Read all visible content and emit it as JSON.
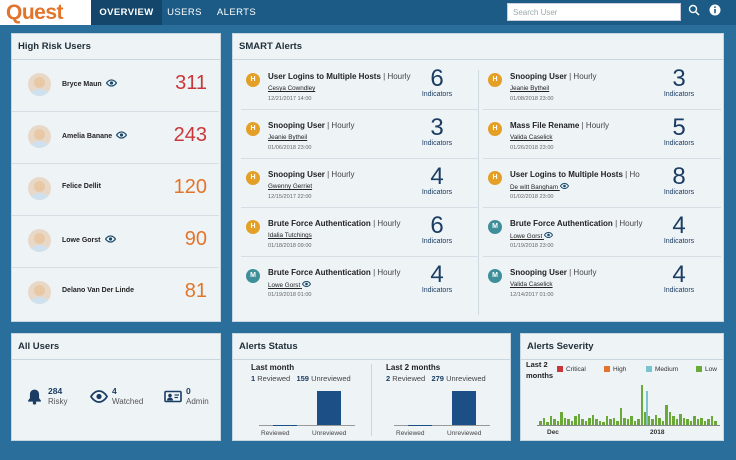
{
  "brand": "Quest",
  "tabs": [
    "OVERVIEW",
    "USERS",
    "ALERTS"
  ],
  "search": {
    "placeholder": "Search User"
  },
  "high_risk": {
    "title": "High Risk Users",
    "users": [
      {
        "name": "Bryce Maun",
        "score": "311",
        "color": "#c9373b",
        "eye": true
      },
      {
        "name": "Amelia Banane",
        "score": "243",
        "color": "#c9373b",
        "eye": true
      },
      {
        "name": "Felice Dellit",
        "score": "120",
        "color": "#e2752b",
        "eye": false
      },
      {
        "name": "Lowe Gorst",
        "score": "90",
        "color": "#e2752b",
        "eye": true
      },
      {
        "name": "Delano Van Der Linde",
        "score": "81",
        "color": "#e2752b",
        "eye": false
      }
    ]
  },
  "smart": {
    "title": "SMART Alerts",
    "indicators_label": "Indicators",
    "alerts": [
      {
        "badge": "H",
        "badge_color": "#e49f27",
        "title": "User Logins to Multiple Hosts",
        "freq": "| Hourly",
        "user": "Cesya Cowndley",
        "eye": false,
        "date": "12/21/2017 14:00",
        "count": "6"
      },
      {
        "badge": "H",
        "badge_color": "#e49f27",
        "title": "Snooping User",
        "freq": "| Hourly",
        "user": "Jeanie Bytheil",
        "eye": false,
        "date": "01/08/2018 23:00",
        "count": "3"
      },
      {
        "badge": "H",
        "badge_color": "#e49f27",
        "title": "Snooping User",
        "freq": "| Hourly",
        "user": "Jeanie Bytheil",
        "eye": false,
        "date": "01/06/2018 23:00",
        "count": "3"
      },
      {
        "badge": "H",
        "badge_color": "#e49f27",
        "title": "Mass File Rename",
        "freq": "| Hourly",
        "user": "Valida Caselick",
        "eye": false,
        "date": "01/26/2018 23:00",
        "count": "5"
      },
      {
        "badge": "H",
        "badge_color": "#e49f27",
        "title": "Snooping User",
        "freq": "| Hourly",
        "user": "Gwenny Gerriet",
        "eye": false,
        "date": "12/15/2017 22:00",
        "count": "4"
      },
      {
        "badge": "H",
        "badge_color": "#e49f27",
        "title": "User Logins to Multiple Hosts",
        "freq": "| Ho",
        "user": "De witt Bangham",
        "eye": true,
        "date": "01/02/2018 23:00",
        "count": "8"
      },
      {
        "badge": "H",
        "badge_color": "#e49f27",
        "title": "Brute Force Authentication",
        "freq": "| Hourly",
        "user": "Idalia Tutchings",
        "eye": false,
        "date": "01/18/2018 09:00",
        "count": "6"
      },
      {
        "badge": "M",
        "badge_color": "#3f8f9a",
        "title": "Brute Force Authentication",
        "freq": "| Hourly",
        "user": "Lowe Gorst",
        "eye": true,
        "date": "01/19/2018 23:00",
        "count": "4"
      },
      {
        "badge": "M",
        "badge_color": "#3f8f9a",
        "title": "Brute Force Authentication",
        "freq": "| Hourly",
        "user": "Lowe Gorst",
        "eye": true,
        "date": "01/19/2018 01:00",
        "count": "4"
      },
      {
        "badge": "M",
        "badge_color": "#3f8f9a",
        "title": "Snooping User",
        "freq": "| Hourly",
        "user": "Valida Caselick",
        "eye": false,
        "date": "12/14/2017 01:00",
        "count": "4"
      }
    ]
  },
  "all_users": {
    "title": "All Users",
    "items": [
      {
        "icon": "bell-icon",
        "num": "284",
        "label": "Risky"
      },
      {
        "icon": "eye-icon",
        "num": "4",
        "label": "Watched"
      },
      {
        "icon": "admin-icon",
        "num": "0",
        "label": "Admin"
      }
    ]
  },
  "alerts_status": {
    "title": "Alerts Status",
    "reviewed_label": "Reviewed",
    "unreviewed_label": "Unreviewed",
    "groups": [
      {
        "heading": "Last month",
        "reviewed": "1",
        "unreviewed": "159"
      },
      {
        "heading": "Last 2 months",
        "reviewed": "2",
        "unreviewed": "279"
      }
    ]
  },
  "severity": {
    "title": "Alerts Severity",
    "period": "Last 2 months",
    "legend": [
      {
        "label": "Critical",
        "color": "#c9373b"
      },
      {
        "label": "High",
        "color": "#e2752b"
      },
      {
        "label": "Medium",
        "color": "#7cc3d0"
      },
      {
        "label": "Low",
        "color": "#6aa838"
      }
    ],
    "x_labels": [
      "Dec",
      "2018"
    ],
    "low": [
      3,
      5,
      2,
      6,
      4,
      3,
      9,
      5,
      4,
      3,
      6,
      8,
      4,
      3,
      5,
      7,
      4,
      3,
      2,
      6,
      4,
      5,
      3,
      12,
      5,
      4,
      6,
      3,
      4,
      28,
      9,
      6,
      4,
      7,
      5,
      3,
      14,
      9,
      6,
      4,
      8,
      5,
      4,
      3,
      6,
      4,
      5,
      3,
      4,
      6,
      3
    ],
    "medium": [
      0,
      0,
      0,
      0,
      0,
      0,
      0,
      0,
      0,
      0,
      0,
      0,
      0,
      0,
      0,
      0,
      0,
      0,
      0,
      0,
      0,
      0,
      0,
      0,
      0,
      0,
      0,
      0,
      0,
      0,
      24,
      0,
      0,
      0,
      0,
      0,
      0,
      0,
      0,
      0,
      0,
      0,
      0,
      0,
      0,
      0,
      0,
      0,
      0,
      0,
      0
    ]
  }
}
